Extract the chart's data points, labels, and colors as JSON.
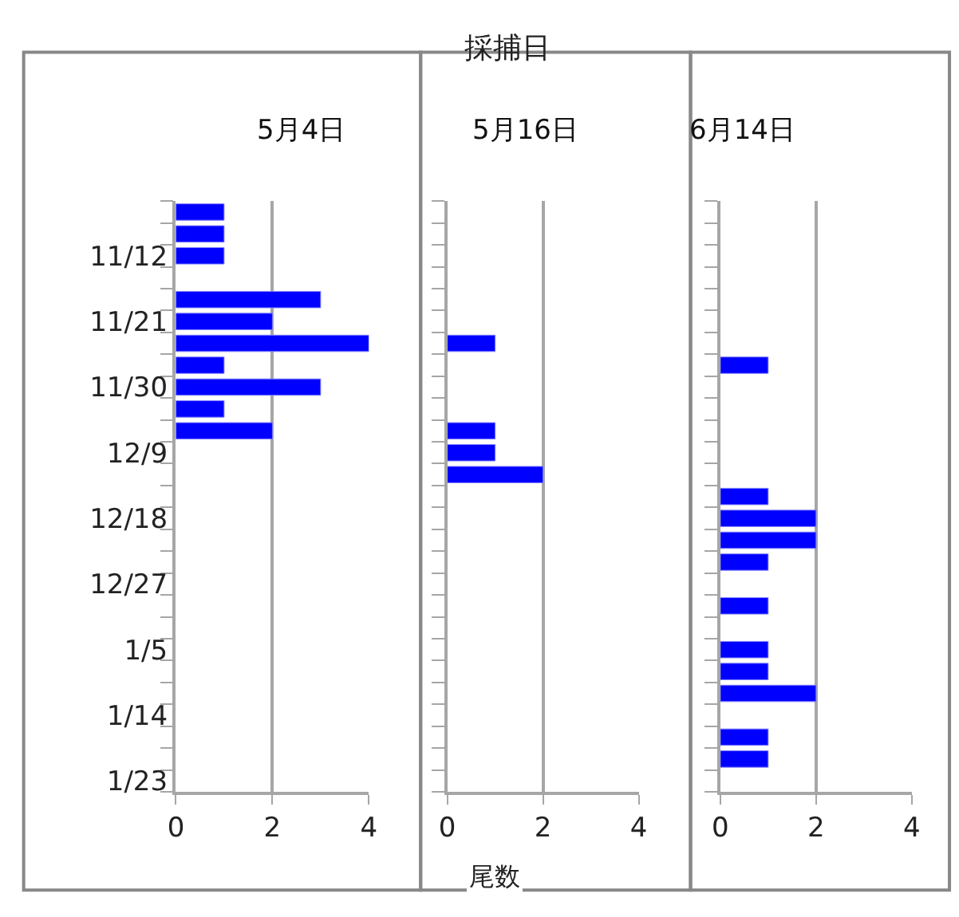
{
  "chart_data": [
    {
      "type": "bar",
      "orientation": "horizontal",
      "title": "5月4日",
      "ylabel": "採捕日",
      "tick_labels": true,
      "categories": [
        null,
        null,
        "11/12",
        null,
        null,
        "11/21",
        null,
        null,
        "11/30",
        null,
        null,
        "12/9",
        null,
        null,
        "12/18",
        null,
        null,
        "12/27",
        null,
        null,
        "1/5",
        null,
        null,
        "1/14",
        null,
        null,
        "1/23"
      ],
      "values": [
        1,
        1,
        1,
        null,
        3,
        2,
        4,
        1,
        3,
        1,
        2,
        null,
        null,
        null,
        null,
        null,
        null,
        null,
        null,
        null,
        null,
        null,
        null,
        null,
        null,
        null,
        null
      ],
      "color": "#0000ff",
      "xlim": [
        0,
        4
      ],
      "xticks": [
        0,
        2,
        4
      ],
      "grid": "x"
    },
    {
      "type": "bar",
      "orientation": "horizontal",
      "title": "5月16日",
      "xlabel": "尾数",
      "tick_labels": "x",
      "values": [
        null,
        null,
        null,
        null,
        null,
        null,
        1,
        null,
        null,
        null,
        1,
        1,
        2,
        null,
        null,
        null,
        null,
        null,
        null,
        null,
        null,
        null,
        null,
        null,
        null,
        null,
        null
      ],
      "color": "#0000ff",
      "xlim": [
        0,
        4
      ],
      "xticks": [
        0,
        2,
        4
      ],
      "grid": "x"
    },
    {
      "type": "bar",
      "orientation": "horizontal",
      "title": "6月14日",
      "tick_labels": "x",
      "values": [
        null,
        null,
        null,
        null,
        null,
        null,
        null,
        1,
        null,
        null,
        null,
        null,
        null,
        1,
        2,
        2,
        1,
        null,
        1,
        null,
        1,
        1,
        2,
        null,
        1,
        1,
        null
      ],
      "color": "#0000ff",
      "xlim": [
        0,
        4
      ],
      "xticks": [
        0,
        2,
        4
      ],
      "grid": "x"
    }
  ]
}
